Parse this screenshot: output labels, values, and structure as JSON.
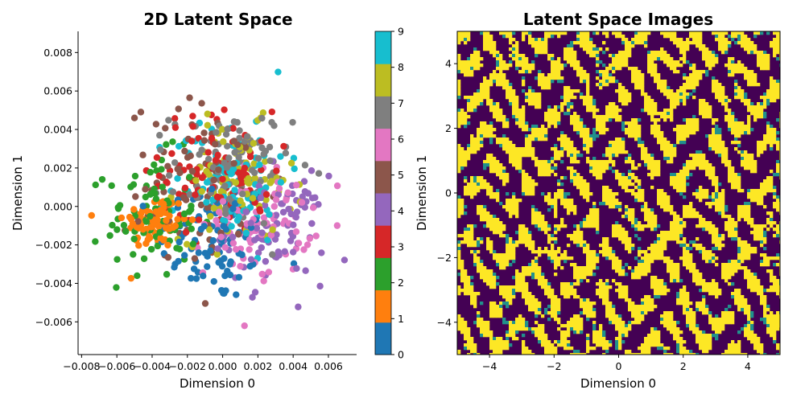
{
  "chart_data": [
    {
      "type": "scatter",
      "title": "2D Latent Space",
      "xlabel": "Dimension 0",
      "ylabel": "Dimension 1",
      "xlim": [
        -0.0082,
        0.0076
      ],
      "ylim": [
        -0.0077,
        0.0091
      ],
      "x_ticks": [
        "−0.008",
        "−0.006",
        "−0.004",
        "−0.002",
        "0.000",
        "0.002",
        "0.004",
        "0.006"
      ],
      "y_ticks": [
        "−0.006",
        "−0.004",
        "−0.002",
        "0.000",
        "0.002",
        "0.004",
        "0.006",
        "0.008"
      ],
      "colormap": "tab10",
      "class_colors": [
        "#1f77b4",
        "#ff7f0e",
        "#2ca02c",
        "#d62728",
        "#9467bd",
        "#8c564b",
        "#e377c2",
        "#7f7f7f",
        "#bcbd22",
        "#17becf"
      ],
      "clusters": [
        {
          "label": 0,
          "center": [
            -0.0004,
            -0.0018
          ],
          "spread": [
            0.0016,
            0.0016
          ]
        },
        {
          "label": 1,
          "center": [
            -0.0038,
            -0.0008
          ],
          "spread": [
            0.0009,
            0.0007
          ]
        },
        {
          "label": 2,
          "center": [
            -0.004,
            -0.0005
          ],
          "spread": [
            0.0013,
            0.0016
          ]
        },
        {
          "label": 3,
          "center": [
            -0.0003,
            0.0018
          ],
          "spread": [
            0.0016,
            0.0016
          ]
        },
        {
          "label": 4,
          "center": [
            0.003,
            -0.0012
          ],
          "spread": [
            0.0014,
            0.0014
          ]
        },
        {
          "label": 5,
          "center": [
            -0.001,
            0.001
          ],
          "spread": [
            0.0022,
            0.0022
          ]
        },
        {
          "label": 6,
          "center": [
            0.002,
            -0.0008
          ],
          "spread": [
            0.0015,
            0.0014
          ]
        },
        {
          "label": 7,
          "center": [
            0.0005,
            0.002
          ],
          "spread": [
            0.0017,
            0.0015
          ]
        },
        {
          "label": 8,
          "center": [
            0.0008,
            0.0012
          ],
          "spread": [
            0.0016,
            0.0015
          ]
        },
        {
          "label": 9,
          "center": [
            0.0005,
            0.0015
          ],
          "spread": [
            0.0016,
            0.0016
          ]
        }
      ],
      "points_per_class": 90,
      "colorbar": {
        "ticks": [
          "0",
          "1",
          "2",
          "3",
          "4",
          "5",
          "6",
          "7",
          "8",
          "9"
        ],
        "range": [
          0,
          9
        ]
      }
    },
    {
      "type": "heatmap",
      "title": "Latent Space Images",
      "xlabel": "Dimension 0",
      "ylabel": "Dimension 1",
      "xlim": [
        -5,
        5
      ],
      "ylim": [
        -5,
        5
      ],
      "x_ticks": [
        "−4",
        "−2",
        "0",
        "2",
        "4"
      ],
      "y_ticks": [
        "−4",
        "−2",
        "0",
        "2",
        "4"
      ],
      "colormap": "viridis",
      "grid_cells": 10,
      "colors": {
        "low": "#440154",
        "mid": "#21918c",
        "high": "#fde725"
      }
    }
  ]
}
